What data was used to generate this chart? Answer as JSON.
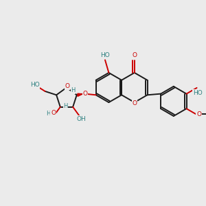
{
  "bg_color": "#ebebeb",
  "bond_color": "#1a1a1a",
  "o_color": "#cc0000",
  "h_color": "#2d8080",
  "line_width": 1.4,
  "font_size": 6.5,
  "fig_size": [
    3.0,
    3.0
  ],
  "dpi": 100,
  "xlim": [
    0,
    10
  ],
  "ylim": [
    0,
    10
  ]
}
